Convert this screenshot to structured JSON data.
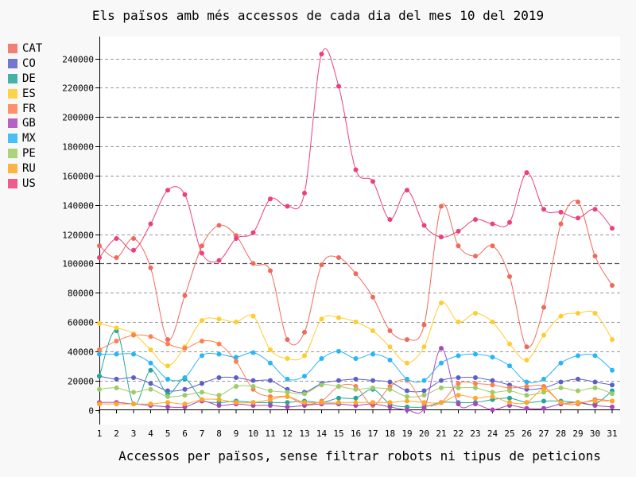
{
  "chart_data": {
    "type": "line",
    "title": "Els països amb més accessos de cada dia del mes 10 del 2019",
    "xlabel": "Accessos per països, sense filtrar robots ni tipus de peticions",
    "ylabel": "",
    "ylim": [
      0,
      250000
    ],
    "yticks": [
      0,
      20000,
      40000,
      60000,
      80000,
      100000,
      120000,
      140000,
      160000,
      180000,
      200000,
      220000,
      240000
    ],
    "ytick_labels": [
      "0",
      "20000",
      "40000",
      "60000",
      "80000",
      "100000",
      "120000",
      "140000",
      "160000",
      "180000",
      "200000",
      "220000",
      "240000"
    ],
    "major_gridlines": [
      100000,
      200000
    ],
    "legend_position": "left",
    "categories": [
      "1",
      "2",
      "3",
      "4",
      "5",
      "6",
      "7",
      "8",
      "9",
      "10",
      "11",
      "12",
      "13",
      "14",
      "15",
      "16",
      "17",
      "18",
      "19",
      "20",
      "21",
      "22",
      "23",
      "24",
      "25",
      "26",
      "27",
      "28",
      "29",
      "30",
      "31"
    ],
    "series": [
      {
        "name": "CAT",
        "color": "#f06a5c",
        "values": [
          112000,
          104000,
          117000,
          97000,
          48000,
          78000,
          112000,
          126000,
          119000,
          100000,
          95000,
          48000,
          53000,
          99000,
          104000,
          93000,
          77000,
          54000,
          48000,
          58000,
          139000,
          112000,
          105000,
          112000,
          91000,
          43000,
          70000,
          127000,
          142000,
          105000,
          85000
        ]
      },
      {
        "name": "CO",
        "color": "#5c5fc9",
        "values": [
          23000,
          21000,
          22000,
          18000,
          13000,
          14000,
          18000,
          22000,
          22000,
          20000,
          20000,
          14000,
          12000,
          18000,
          20000,
          21000,
          20000,
          19000,
          13000,
          13000,
          20000,
          22000,
          22000,
          20000,
          17000,
          14000,
          15000,
          19000,
          21000,
          19000,
          17000
        ]
      },
      {
        "name": "DE",
        "color": "#26a69a",
        "values": [
          23000,
          54000,
          4000,
          27000,
          11000,
          21000,
          7000,
          5000,
          6000,
          5000,
          5000,
          5000,
          6000,
          5000,
          8000,
          8000,
          14000,
          4000,
          2000,
          2000,
          5000,
          5000,
          5000,
          7000,
          8000,
          5000,
          6000,
          6000,
          5000,
          4000,
          13000
        ]
      },
      {
        "name": "ES",
        "color": "#ffcd2e",
        "values": [
          59000,
          56000,
          52000,
          41000,
          30000,
          43000,
          61000,
          62000,
          60000,
          64000,
          41000,
          35000,
          37000,
          62000,
          63000,
          60000,
          54000,
          43000,
          32000,
          43000,
          73000,
          60000,
          66000,
          60000,
          45000,
          34000,
          51000,
          64000,
          66000,
          66000,
          48000
        ]
      },
      {
        "name": "FR",
        "color": "#ff7f50",
        "values": [
          41000,
          47000,
          51000,
          50000,
          45000,
          42000,
          47000,
          45000,
          33000,
          14000,
          9000,
          9000,
          4000,
          6000,
          16000,
          16000,
          3000,
          16000,
          20000,
          4000,
          5000,
          18000,
          18000,
          17000,
          15000,
          16000,
          16000,
          5000,
          4000,
          7000,
          6000
        ]
      },
      {
        "name": "GB",
        "color": "#ab47bc",
        "values": [
          5000,
          5000,
          4000,
          3000,
          2000,
          2000,
          6000,
          3000,
          4000,
          3000,
          3000,
          2000,
          3000,
          4000,
          4000,
          3000,
          4000,
          2000,
          0,
          1000,
          42000,
          4000,
          4000,
          0,
          3000,
          1000,
          1000,
          4000,
          5000,
          3000,
          2000
        ]
      },
      {
        "name": "MX",
        "color": "#29b6f6",
        "values": [
          38000,
          38000,
          38000,
          32000,
          21000,
          22000,
          37000,
          38000,
          36000,
          39000,
          32000,
          21000,
          23000,
          35000,
          40000,
          35000,
          38000,
          34000,
          21000,
          20000,
          32000,
          37000,
          38000,
          36000,
          30000,
          19000,
          21000,
          32000,
          37000,
          37000,
          27000
        ]
      },
      {
        "name": "PE",
        "color": "#9ccc65",
        "values": [
          14000,
          15000,
          12000,
          14000,
          9000,
          10000,
          12000,
          10000,
          16000,
          16000,
          13000,
          12000,
          11000,
          17000,
          16000,
          14000,
          15000,
          14000,
          9000,
          10000,
          15000,
          15000,
          15000,
          12000,
          13000,
          10000,
          12000,
          15000,
          13000,
          15000,
          11000
        ]
      },
      {
        "name": "RU",
        "color": "#ffa726",
        "values": [
          4000,
          4000,
          4000,
          4000,
          5000,
          4000,
          7000,
          7000,
          5000,
          5000,
          7000,
          9000,
          5000,
          5000,
          5000,
          5000,
          5000,
          5000,
          6000,
          5000,
          5000,
          10000,
          8000,
          9000,
          5000,
          5000,
          14000,
          5000,
          5000,
          6000,
          6000
        ]
      },
      {
        "name": "US",
        "color": "#ec407a",
        "values": [
          104000,
          117000,
          109000,
          127000,
          150000,
          147000,
          107000,
          102000,
          117000,
          121000,
          144000,
          139000,
          148000,
          243000,
          221000,
          164000,
          156000,
          130000,
          150000,
          126000,
          118000,
          122000,
          130000,
          127000,
          128000,
          162000,
          137000,
          135000,
          131000,
          137000,
          124000
        ]
      }
    ]
  }
}
